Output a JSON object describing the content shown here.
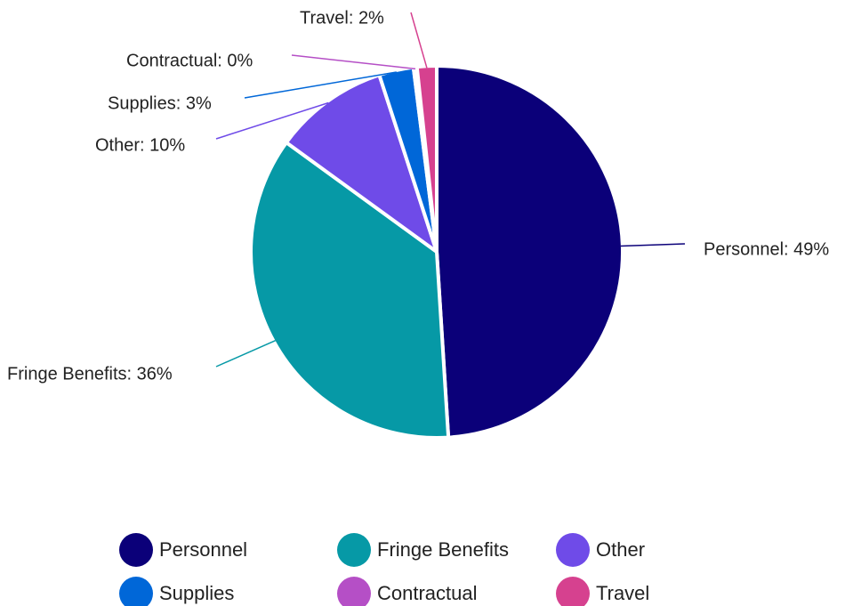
{
  "chart_data": {
    "type": "pie",
    "title": "",
    "categories": [
      "Personnel",
      "Fringe Benefits",
      "Other",
      "Supplies",
      "Contractual",
      "Travel"
    ],
    "values": [
      49,
      36,
      10,
      3,
      0.3,
      1.7
    ],
    "data_labels": [
      "Personnel: 49%",
      "Fringe Benefits: 36%",
      "Other: 10%",
      "Supplies: 3%",
      "Contractual: 0%",
      "Travel: 2%"
    ],
    "colors": [
      "#0b0079",
      "#0699a6",
      "#6f4be8",
      "#0067d8",
      "#b54fc6",
      "#d6418f"
    ],
    "legend": {
      "position": "bottom"
    }
  }
}
